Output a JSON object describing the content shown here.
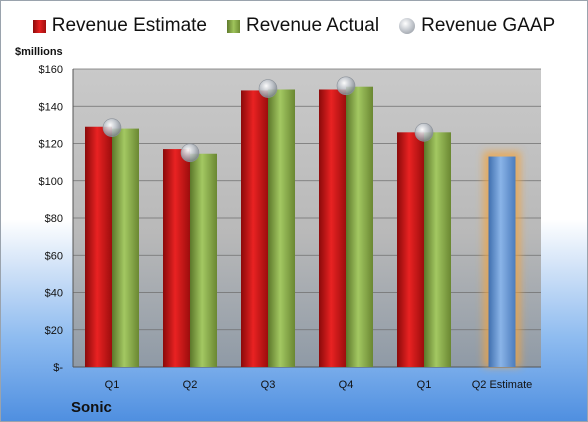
{
  "legend": [
    {
      "name": "Revenue Estimate",
      "icon": "red-bar-swatch"
    },
    {
      "name": "Revenue Actual",
      "icon": "green-bar-swatch"
    },
    {
      "name": "Revenue GAAP",
      "icon": "gray-sphere-marker"
    }
  ],
  "unit_label": "$millions",
  "company": "Sonic",
  "colors": {
    "estimate": "#d71a1a",
    "actual": "#8db04a",
    "gaap": "#b9bec5",
    "projection": "#6f9fd8",
    "projection_glow": "#f2a441",
    "plot_background": "#c4c4c4"
  },
  "chart_data": {
    "type": "bar",
    "categories": [
      "Q1",
      "Q2",
      "Q3",
      "Q4",
      "Q1",
      "Q2 Estimate"
    ],
    "series": [
      {
        "name": "Revenue Estimate",
        "values": [
          129,
          117,
          148.5,
          149,
          126,
          113
        ]
      },
      {
        "name": "Revenue Actual",
        "values": [
          128,
          114.5,
          149,
          150.5,
          126,
          null
        ]
      },
      {
        "name": "Revenue GAAP",
        "values": [
          128.5,
          115,
          149.5,
          151,
          126,
          null
        ]
      }
    ],
    "yticks": [
      "$-",
      "$20",
      "$40",
      "$60",
      "$80",
      "$100",
      "$120",
      "$140",
      "$160"
    ],
    "ylim": [
      0,
      160
    ],
    "grid": true,
    "legend_position": "top"
  }
}
